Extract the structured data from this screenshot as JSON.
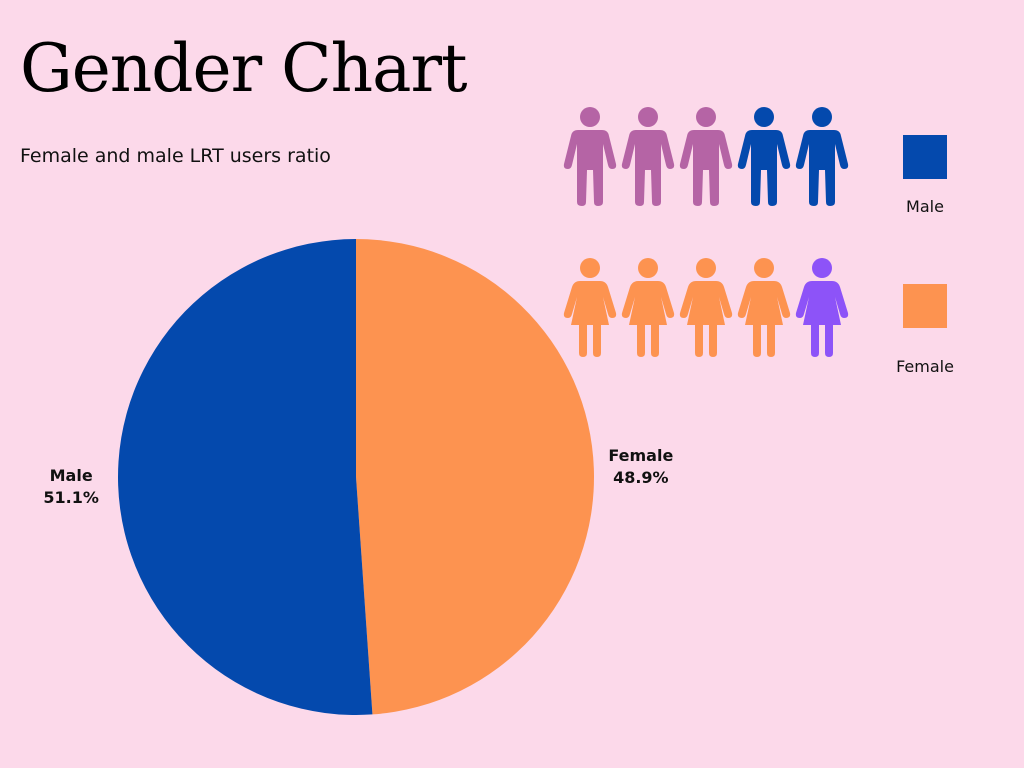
{
  "title": "Gender Chart",
  "subtitle": "Female and male LRT users ratio",
  "colors": {
    "male": "#0449ad",
    "female": "#fd9350",
    "male_icon_muted": "#b564a5",
    "female_icon_highlight": "#8d53f8",
    "background": "#fcd9ea"
  },
  "chart_data": {
    "type": "pie",
    "title": "Gender Chart",
    "slices": [
      {
        "name": "Female",
        "value": 48.9,
        "label": "48.9%",
        "color": "#fd9350"
      },
      {
        "name": "Male",
        "value": 51.1,
        "label": "51.1%",
        "color": "#0449ad"
      }
    ],
    "start": "top",
    "direction": "clockwise",
    "legend_placement": "right"
  },
  "pictogram": {
    "male_row": {
      "count": 5,
      "icon": "man-icon",
      "filled": 2,
      "fill_color": "#0449ad",
      "other_color": "#b564a5"
    },
    "female_row": {
      "count": 5,
      "icon": "woman-icon",
      "filled": 4,
      "fill_color": "#fd9350",
      "other_color": "#8d53f8"
    }
  },
  "legend": [
    {
      "label": "Male",
      "color": "#0449ad"
    },
    {
      "label": "Female",
      "color": "#fd9350"
    }
  ]
}
